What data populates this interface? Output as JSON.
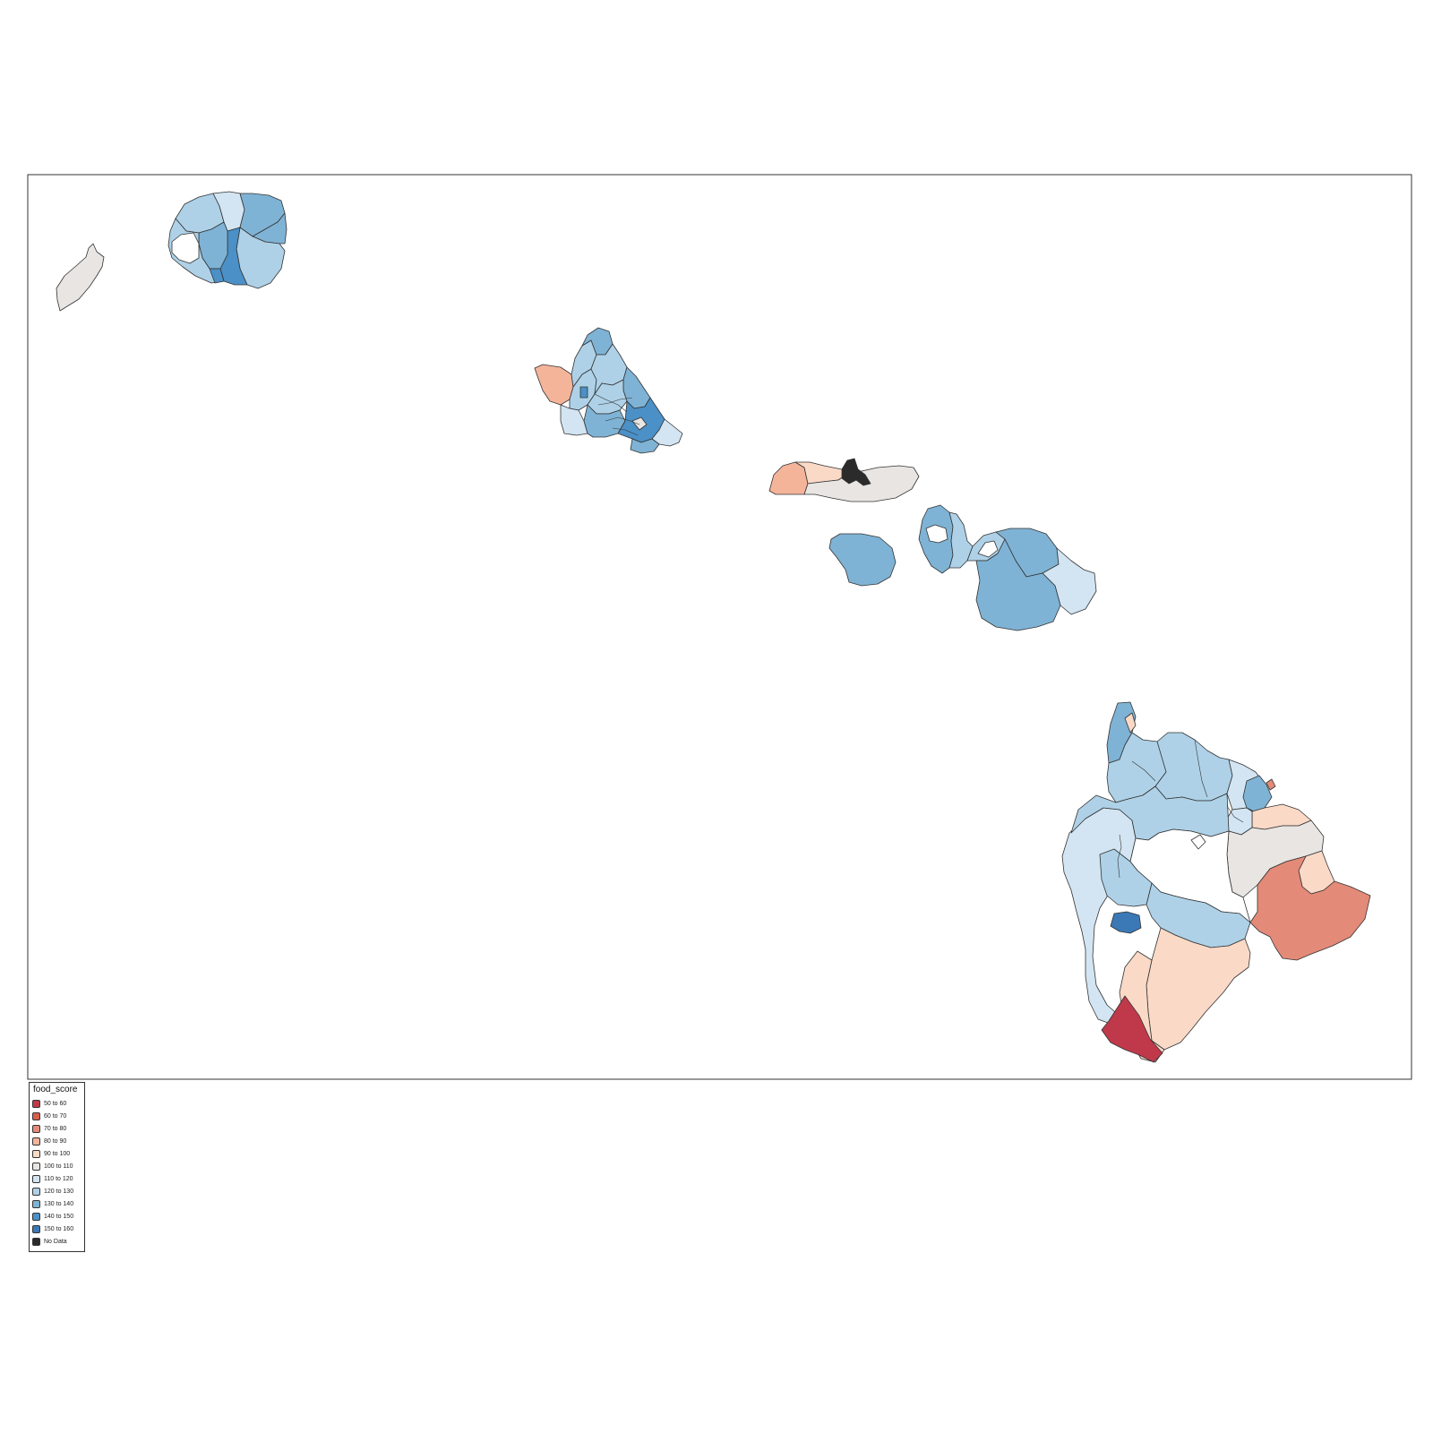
{
  "legend": {
    "title": "food_score",
    "items": [
      {
        "label": "50 to 60",
        "color": "#c0394b"
      },
      {
        "label": "60 to 70",
        "color": "#d6604d"
      },
      {
        "label": "70 to 80",
        "color": "#e48a78"
      },
      {
        "label": "80 to 90",
        "color": "#f4b49a"
      },
      {
        "label": "90 to 100",
        "color": "#fad9c7"
      },
      {
        "label": "100 to 110",
        "color": "#e8e5e3"
      },
      {
        "label": "110 to 120",
        "color": "#d3e5f2"
      },
      {
        "label": "120 to 130",
        "color": "#aed1e7"
      },
      {
        "label": "130 to 140",
        "color": "#7fb3d5"
      },
      {
        "label": "140 to 150",
        "color": "#4b90c6"
      },
      {
        "label": "150 to 160",
        "color": "#3a79b5"
      },
      {
        "label": "No Data",
        "color": "#2b2b2b"
      }
    ]
  }
}
